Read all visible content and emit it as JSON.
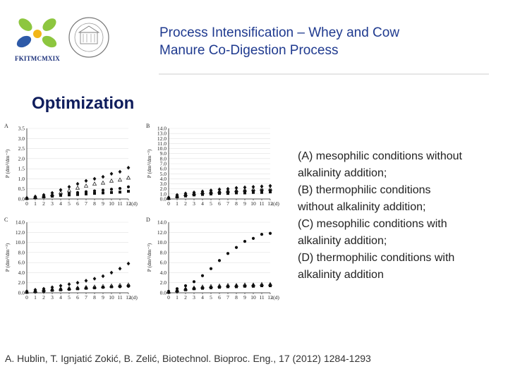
{
  "header": {
    "title_line1": "Process Intensification – Whey and Cow",
    "title_line2": "Manure Co-Digestion Process",
    "logo_text": "FKITMCMXIX",
    "seal_text": "UNIVERSITAS STUDIORUM ZAGRABIENSIS"
  },
  "section_title": "Optimization",
  "caption": [
    "(A) mesophilic conditions without",
    "alkalinity addition;",
    "(B) thermophilic conditions",
    "without alkalinity addition;",
    "(C) mesophilic conditions with",
    "alkalinity addition;",
    "(D) thermophilic conditions with",
    "alkalinity addition"
  ],
  "reference": "A. Hublin, T. Ignjatić Zokić, B. Zelić, Biotechnol. Bioproc. Eng., 17 (2012) 1284-1293",
  "colors": {
    "title": "#1f3a8f",
    "section": "#0f1d5c",
    "marker": "#111111",
    "logo_green": "#8dc63f",
    "logo_blue": "#2e5aa8",
    "logo_yellow": "#f2b619"
  },
  "chart_data": [
    {
      "panel": "A",
      "type": "scatter",
      "xlabel": "t(d)",
      "ylabel": "P (dm³/dm⁻³)",
      "x_ticks": [
        "0",
        "1",
        "2",
        "3",
        "4",
        "5",
        "6",
        "7",
        "8",
        "9",
        "10",
        "11",
        "12"
      ],
      "y_ticks": [
        "0.0",
        "0.5",
        "1.0",
        "1.5",
        "2.0",
        "2.5",
        "3.0",
        "3.5"
      ],
      "ylim": [
        0,
        3.5
      ],
      "series": [
        {
          "marker": "diamond",
          "x": [
            0,
            1,
            2,
            3,
            4,
            5,
            6,
            7,
            8,
            9,
            10,
            11,
            12
          ],
          "y": [
            0.05,
            0.12,
            0.2,
            0.3,
            0.45,
            0.6,
            0.75,
            0.9,
            1.0,
            1.1,
            1.25,
            1.35,
            1.55
          ]
        },
        {
          "marker": "triangle",
          "x": [
            0,
            1,
            2,
            3,
            4,
            5,
            6,
            7,
            8,
            9,
            10,
            11,
            12
          ],
          "y": [
            0.05,
            0.1,
            0.15,
            0.22,
            0.32,
            0.42,
            0.55,
            0.65,
            0.75,
            0.8,
            0.9,
            0.95,
            1.05
          ]
        },
        {
          "marker": "circle",
          "x": [
            0,
            1,
            2,
            3,
            4,
            5,
            6,
            7,
            8,
            9,
            10,
            11,
            12
          ],
          "y": [
            0.03,
            0.08,
            0.12,
            0.18,
            0.22,
            0.28,
            0.32,
            0.36,
            0.4,
            0.44,
            0.48,
            0.52,
            0.6
          ]
        },
        {
          "marker": "square",
          "x": [
            0,
            1,
            2,
            3,
            4,
            5,
            6,
            7,
            8,
            9,
            10,
            11,
            12
          ],
          "y": [
            0.02,
            0.06,
            0.1,
            0.14,
            0.18,
            0.2,
            0.22,
            0.25,
            0.28,
            0.3,
            0.32,
            0.34,
            0.38
          ]
        }
      ]
    },
    {
      "panel": "B",
      "type": "scatter",
      "xlabel": "t(d)",
      "ylabel": "P (dm³/dm⁻³)",
      "x_ticks": [
        "0",
        "1",
        "2",
        "3",
        "4",
        "5",
        "6",
        "7",
        "8",
        "9",
        "10",
        "11",
        "12"
      ],
      "y_ticks": [
        "0.0",
        "1.0",
        "2.0",
        "3.0",
        "4.0",
        "5.0",
        "6.0",
        "7.0",
        "8.0",
        "9.0",
        "10.0",
        "11.0",
        "12.0",
        "13.0",
        "14.0"
      ],
      "ylim": [
        0,
        14
      ],
      "series": [
        {
          "marker": "diamond",
          "x": [
            0,
            1,
            2,
            3,
            4,
            5,
            6,
            7,
            8,
            9,
            10,
            11,
            12
          ],
          "y": [
            0.3,
            0.8,
            1.1,
            1.3,
            1.5,
            1.7,
            1.9,
            2.0,
            2.2,
            2.3,
            2.4,
            2.5,
            2.6
          ]
        },
        {
          "marker": "triangle",
          "x": [
            0,
            1,
            2,
            3,
            4,
            5,
            6,
            7,
            8,
            9,
            10,
            11,
            12
          ],
          "y": [
            0.2,
            0.6,
            0.9,
            1.1,
            1.3,
            1.4,
            1.5,
            1.6,
            1.7,
            1.8,
            1.9,
            2.0,
            2.0
          ]
        },
        {
          "marker": "circle",
          "x": [
            0,
            1,
            2,
            3,
            4,
            5,
            6,
            7,
            8,
            9,
            10,
            11,
            12
          ],
          "y": [
            0.2,
            0.5,
            0.8,
            1.0,
            1.2,
            1.3,
            1.4,
            1.5,
            1.5,
            1.6,
            1.6,
            1.7,
            1.7
          ]
        },
        {
          "marker": "square",
          "x": [
            0,
            1,
            2,
            3,
            4,
            5,
            6,
            7,
            8,
            9,
            10,
            11,
            12
          ],
          "y": [
            0.1,
            0.4,
            0.6,
            0.8,
            0.9,
            1.0,
            1.1,
            1.1,
            1.2,
            1.2,
            1.3,
            1.3,
            1.4
          ]
        }
      ]
    },
    {
      "panel": "C",
      "type": "scatter",
      "xlabel": "t(d)",
      "ylabel": "P (dm³/dm⁻³)",
      "x_ticks": [
        "0",
        "1",
        "2",
        "3",
        "4",
        "5",
        "6",
        "7",
        "8",
        "9",
        "10",
        "11",
        "12"
      ],
      "y_ticks": [
        "0.0",
        "2.0",
        "4.0",
        "6.0",
        "8.0",
        "10.0",
        "12.0",
        "14.0"
      ],
      "ylim": [
        0,
        14
      ],
      "series": [
        {
          "marker": "diamond",
          "x": [
            0,
            1,
            2,
            3,
            4,
            5,
            6,
            7,
            8,
            9,
            10,
            11,
            12
          ],
          "y": [
            0.3,
            0.6,
            0.8,
            1.1,
            1.4,
            1.7,
            2.0,
            2.4,
            2.8,
            3.3,
            4.0,
            4.8,
            5.8
          ]
        },
        {
          "marker": "triangle",
          "x": [
            0,
            1,
            2,
            3,
            4,
            5,
            6,
            7,
            8,
            9,
            10,
            11,
            12
          ],
          "y": [
            0.2,
            0.4,
            0.6,
            0.7,
            0.8,
            0.9,
            1.0,
            1.1,
            1.2,
            1.3,
            1.4,
            1.5,
            1.6
          ]
        },
        {
          "marker": "circle",
          "x": [
            0,
            1,
            2,
            3,
            4,
            5,
            6,
            7,
            8,
            9,
            10,
            11,
            12
          ],
          "y": [
            0.2,
            0.3,
            0.5,
            0.6,
            0.7,
            0.8,
            0.9,
            1.0,
            1.0,
            1.1,
            1.2,
            1.2,
            1.3
          ]
        },
        {
          "marker": "square",
          "x": [
            0,
            1,
            2,
            3,
            4,
            5,
            6,
            7,
            8,
            9,
            10,
            11,
            12
          ],
          "y": [
            0.1,
            0.2,
            0.3,
            0.5,
            0.6,
            0.7,
            0.8,
            0.9,
            1.0,
            1.1,
            1.2,
            1.3,
            1.4
          ]
        }
      ]
    },
    {
      "panel": "D",
      "type": "scatter",
      "xlabel": "t(d)",
      "ylabel": "P (dm³/dm⁻³)",
      "x_ticks": [
        "0",
        "1",
        "2",
        "3",
        "4",
        "5",
        "6",
        "7",
        "8",
        "9",
        "10",
        "11",
        "12"
      ],
      "y_ticks": [
        "0.0",
        "2.0",
        "4.0",
        "6.0",
        "8.0",
        "10.0",
        "12.0",
        "14.0"
      ],
      "ylim": [
        0,
        14
      ],
      "series": [
        {
          "marker": "circle",
          "x": [
            0,
            1,
            2,
            3,
            4,
            5,
            6,
            7,
            8,
            9,
            10,
            11,
            12
          ],
          "y": [
            0.3,
            0.8,
            1.4,
            2.2,
            3.4,
            4.8,
            6.4,
            7.8,
            9.0,
            10.2,
            10.8,
            11.6,
            11.8
          ]
        },
        {
          "marker": "triangle",
          "x": [
            0,
            1,
            2,
            3,
            4,
            5,
            6,
            7,
            8,
            9,
            10,
            11,
            12
          ],
          "y": [
            0.2,
            0.5,
            0.8,
            1.0,
            1.2,
            1.3,
            1.4,
            1.5,
            1.5,
            1.6,
            1.6,
            1.7,
            1.7
          ]
        },
        {
          "marker": "diamond",
          "x": [
            0,
            1,
            2,
            3,
            4,
            5,
            6,
            7,
            8,
            9,
            10,
            11,
            12
          ],
          "y": [
            0.1,
            0.4,
            0.7,
            0.9,
            1.0,
            1.1,
            1.2,
            1.3,
            1.4,
            1.4,
            1.5,
            1.5,
            1.6
          ]
        },
        {
          "marker": "square",
          "x": [
            0,
            1,
            2,
            3,
            4,
            5,
            6,
            7,
            8,
            9,
            10,
            11,
            12
          ],
          "y": [
            0.1,
            0.3,
            0.6,
            0.8,
            0.9,
            1.0,
            1.1,
            1.2,
            1.2,
            1.3,
            1.3,
            1.4,
            1.4
          ]
        }
      ]
    }
  ]
}
